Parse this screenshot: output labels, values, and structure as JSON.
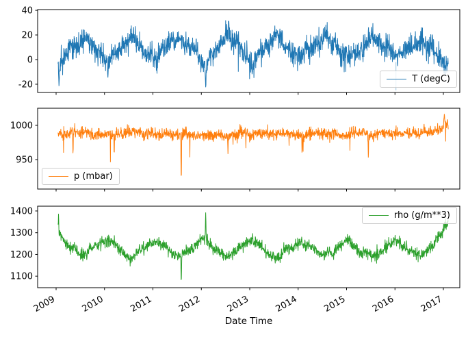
{
  "figure": {
    "background": "#ffffff"
  },
  "chart_data": {
    "type": "line",
    "title": "",
    "xlabel": "Date Time",
    "x_ticks": [
      2009,
      2010,
      2011,
      2012,
      2013,
      2014,
      2015,
      2016,
      2017
    ],
    "x_tick_rotation_deg": 30,
    "grid": false,
    "subplots": [
      {
        "series": "T (degC)",
        "color": "#1f77b4",
        "legend_position": "lower-right",
        "ylim": [
          -26.7,
          40.6
        ],
        "yticks": [
          40,
          20,
          0,
          -20
        ],
        "data_gen": {
          "seed": 11,
          "n": 1700,
          "t_start": 2009.04,
          "t_end": 2017.1,
          "band": 12,
          "amp_jitter": [
            0.5,
            1.35
          ],
          "wander": 0.35,
          "outlier_prob": 0.008,
          "outlier_mag": 10,
          "outlier_bias": 0.75
        },
        "center_keypoints": [
          [
            2009.04,
            -4
          ],
          [
            2009.3,
            8
          ],
          [
            2009.55,
            20
          ],
          [
            2009.8,
            9
          ],
          [
            2010.04,
            -3
          ],
          [
            2010.3,
            8
          ],
          [
            2010.55,
            21
          ],
          [
            2010.8,
            8
          ],
          [
            2011.04,
            0
          ],
          [
            2011.3,
            10
          ],
          [
            2011.55,
            19
          ],
          [
            2011.8,
            9
          ],
          [
            2012.04,
            -3
          ],
          [
            2012.3,
            9
          ],
          [
            2012.55,
            20
          ],
          [
            2012.8,
            9
          ],
          [
            2013.04,
            -1
          ],
          [
            2013.3,
            8
          ],
          [
            2013.55,
            20
          ],
          [
            2013.8,
            9
          ],
          [
            2014.04,
            2
          ],
          [
            2014.3,
            9
          ],
          [
            2014.55,
            20
          ],
          [
            2014.8,
            9
          ],
          [
            2015.04,
            2
          ],
          [
            2015.3,
            9
          ],
          [
            2015.55,
            22
          ],
          [
            2015.8,
            9
          ],
          [
            2016.04,
            1
          ],
          [
            2016.3,
            8
          ],
          [
            2016.55,
            19
          ],
          [
            2016.8,
            7
          ],
          [
            2017.0,
            -1
          ],
          [
            2017.1,
            1
          ]
        ],
        "anomalies": [
          {
            "t": 2009.06,
            "v": -22,
            "w": 0.02
          },
          {
            "t": 2010.07,
            "v": -15,
            "w": 0.015
          },
          {
            "t": 2012.09,
            "v": -23,
            "w": 0.018
          },
          {
            "t": 2013.05,
            "v": -13,
            "w": 0.012
          }
        ],
        "ghost_line": {
          "t": 2016.02,
          "from": -2,
          "to": -25,
          "color": "#9dc6e0"
        }
      },
      {
        "series": "p (mbar)",
        "color": "#ff7f0e",
        "legend_position": "lower-left",
        "ylim": [
          907,
          1025
        ],
        "yticks": [
          1000,
          950
        ],
        "data_gen": {
          "seed": 22,
          "n": 1700,
          "t_start": 2009.04,
          "t_end": 2017.1,
          "band": 10,
          "amp_jitter": [
            0.5,
            1.4
          ],
          "wander": 0.35,
          "outlier_prob": 0.012,
          "outlier_mag": 20,
          "outlier_bias": 0.8
        },
        "center_keypoints": [
          [
            2009.04,
            990
          ],
          [
            2010,
            988
          ],
          [
            2011,
            989
          ],
          [
            2012,
            987
          ],
          [
            2013,
            989
          ],
          [
            2014,
            987
          ],
          [
            2015,
            988
          ],
          [
            2016,
            989
          ],
          [
            2016.85,
            990
          ],
          [
            2017.1,
            1002
          ]
        ],
        "anomalies": [
          {
            "t": 2011.585,
            "v": 913,
            "w": 0.012
          },
          {
            "t": 2009.35,
            "v": 951,
            "w": 0.008
          },
          {
            "t": 2010.2,
            "v": 953,
            "w": 0.008
          },
          {
            "t": 2012.55,
            "v": 956,
            "w": 0.008
          },
          {
            "t": 2014.1,
            "v": 956,
            "w": 0.008
          },
          {
            "t": 2015.45,
            "v": 949,
            "w": 0.009
          },
          {
            "t": 2017.02,
            "v": 1017,
            "w": 0.02
          }
        ]
      },
      {
        "series": "rho (g/m**3)",
        "color": "#2ca02c",
        "legend_position": "upper-right",
        "ylim": [
          1047,
          1422
        ],
        "yticks": [
          1400,
          1300,
          1200,
          1100
        ],
        "data_gen": {
          "seed": 33,
          "n": 1700,
          "t_start": 2009.04,
          "t_end": 2017.1,
          "band": 34,
          "amp_jitter": [
            0.5,
            1.4
          ],
          "wander": 0.35,
          "outlier_prob": 0.01,
          "outlier_mag": 40,
          "outlier_bias": 0.5
        },
        "center_keypoints": [
          [
            2009.04,
            1305
          ],
          [
            2009.3,
            1230
          ],
          [
            2009.55,
            1190
          ],
          [
            2009.8,
            1230
          ],
          [
            2010.04,
            1270
          ],
          [
            2010.3,
            1225
          ],
          [
            2010.55,
            1185
          ],
          [
            2010.8,
            1230
          ],
          [
            2011.04,
            1260
          ],
          [
            2011.3,
            1222
          ],
          [
            2011.55,
            1185
          ],
          [
            2011.8,
            1222
          ],
          [
            2012.04,
            1275
          ],
          [
            2012.3,
            1225
          ],
          [
            2012.55,
            1185
          ],
          [
            2012.8,
            1228
          ],
          [
            2013.04,
            1262
          ],
          [
            2013.3,
            1225
          ],
          [
            2013.55,
            1185
          ],
          [
            2013.8,
            1228
          ],
          [
            2014.04,
            1252
          ],
          [
            2014.3,
            1222
          ],
          [
            2014.55,
            1185
          ],
          [
            2014.8,
            1228
          ],
          [
            2015.04,
            1258
          ],
          [
            2015.3,
            1222
          ],
          [
            2015.55,
            1183
          ],
          [
            2015.8,
            1228
          ],
          [
            2016.04,
            1256
          ],
          [
            2016.3,
            1225
          ],
          [
            2016.55,
            1190
          ],
          [
            2016.8,
            1245
          ],
          [
            2017.0,
            1320
          ],
          [
            2017.1,
            1340
          ]
        ],
        "anomalies": [
          {
            "t": 2009.05,
            "v": 1390,
            "w": 0.012
          },
          {
            "t": 2011.585,
            "v": 1062,
            "w": 0.012
          },
          {
            "t": 2012.09,
            "v": 1396,
            "w": 0.015
          },
          {
            "t": 2017.03,
            "v": 1350,
            "w": 0.015
          }
        ]
      }
    ]
  }
}
